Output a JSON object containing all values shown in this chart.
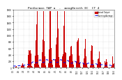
{
  "title": "PenGormen TAP a  -  mengHereth EC  CT 4",
  "legend1": "Actual Output",
  "legend2": "Running Average",
  "bg_color": "#ffffff",
  "plot_bg": "#ffffff",
  "bar_color": "#cc0000",
  "avg_color": "#0000ee",
  "grid_color": "#bbbbbb",
  "ylim": [
    0,
    1800
  ],
  "n_points": 800,
  "seed": 7
}
